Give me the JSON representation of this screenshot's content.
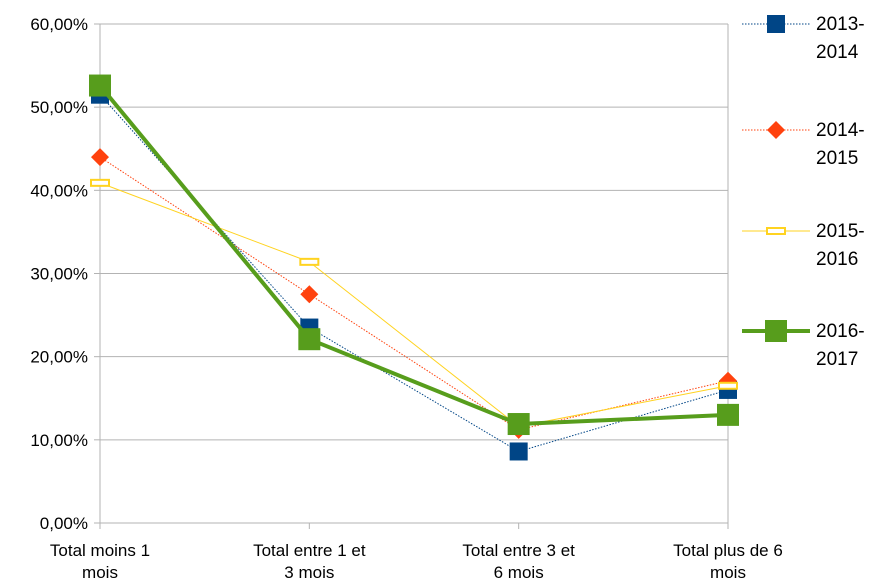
{
  "colors": {
    "background": "#ffffff",
    "grid": "#b3b3b3",
    "s2013": "#004586",
    "s2014": "#ff420e",
    "s2015": "#ffd320",
    "s2016": "#579d1c"
  },
  "chart_data": {
    "type": "line",
    "title": "",
    "xlabel": "",
    "ylabel": "",
    "ylim": [
      0,
      60
    ],
    "yticks": [
      0,
      10,
      20,
      30,
      40,
      50,
      60
    ],
    "ytick_labels": [
      "0,00%",
      "10,00%",
      "20,00%",
      "30,00%",
      "40,00%",
      "50,00%",
      "60,00%"
    ],
    "grid": true,
    "legend": "right",
    "categories": [
      [
        "Total moins 1",
        "mois"
      ],
      [
        "Total entre 1 et",
        "3 mois"
      ],
      [
        "Total entre 3 et",
        "6 mois"
      ],
      [
        "Total plus de 6",
        "mois"
      ]
    ],
    "series": [
      {
        "name": [
          "2013-",
          "2014"
        ],
        "values": [
          51.5,
          23.5,
          8.6,
          16.0
        ],
        "color": "#004586",
        "marker": "square",
        "line": "dotted"
      },
      {
        "name": [
          "2014-",
          "2015"
        ],
        "values": [
          44.0,
          27.5,
          11.2,
          17.1
        ],
        "color": "#ff420e",
        "marker": "diamond",
        "line": "dotted"
      },
      {
        "name": [
          "2015-",
          "2016"
        ],
        "values": [
          40.9,
          31.4,
          11.6,
          16.5
        ],
        "color": "#ffd320",
        "marker": "rect",
        "line": "thin"
      },
      {
        "name": [
          "2016-",
          "2017"
        ],
        "values": [
          52.6,
          22.1,
          11.9,
          13.0
        ],
        "color": "#579d1c",
        "marker": "bigsquare",
        "line": "thick"
      }
    ]
  }
}
